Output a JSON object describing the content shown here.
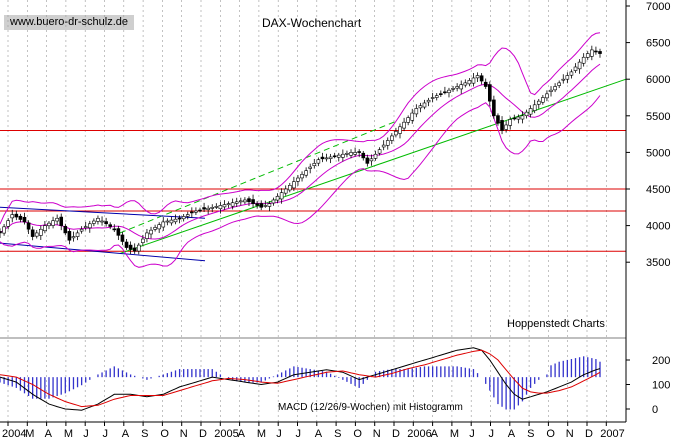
{
  "header": {
    "watermark": "www.buero-dr-schulz.de",
    "title": "DAX-Wochenchart"
  },
  "labels": {
    "source": "Hoppenstedt Charts",
    "macd": "MACD (12/26/9-Wochen) mit Histogramm"
  },
  "colors": {
    "price": "#000000",
    "bollinger": "#cc00cc",
    "support_lines": "#dd0000",
    "trend_up": "#00bb00",
    "channel": "#0000aa",
    "macd_line": "#000000",
    "signal_line": "#dd0000",
    "histogram": "#3333cc",
    "grid": "#999999"
  },
  "chart_data": {
    "type": "candlestick",
    "title": "DAX-Wochenchart",
    "y_price_ticks": [
      "7000",
      "6500",
      "6000",
      "5500",
      "5000",
      "4500",
      "4000",
      "3500"
    ],
    "y_price_values": [
      7000,
      6500,
      6000,
      5500,
      5000,
      4500,
      4000,
      3500
    ],
    "ylim_price": [
      3000,
      7050
    ],
    "y_macd_ticks": [
      "200",
      "100",
      "0"
    ],
    "y_macd_values": [
      200,
      100,
      0
    ],
    "ylim_macd": [
      -90,
      290
    ],
    "x_labels": [
      "2004",
      "M",
      "A",
      "M",
      "J",
      "J",
      "A",
      "S",
      "O",
      "N",
      "D",
      "2005",
      "A",
      "M",
      "J",
      "J",
      "A",
      "S",
      "O",
      "N",
      "D",
      "2006",
      "A",
      "M",
      "J",
      "J",
      "A",
      "S",
      "O",
      "N",
      "D",
      "2007"
    ],
    "horizontal_levels": [
      5300,
      4500,
      4200,
      3650
    ],
    "price_keypoints": [
      [
        0,
        3900
      ],
      [
        3,
        4150
      ],
      [
        6,
        4050
      ],
      [
        8,
        3850
      ],
      [
        11,
        4000
      ],
      [
        14,
        4100
      ],
      [
        17,
        3800
      ],
      [
        20,
        3950
      ],
      [
        24,
        4100
      ],
      [
        28,
        3950
      ],
      [
        31,
        3700
      ],
      [
        33,
        3650
      ],
      [
        36,
        3900
      ],
      [
        40,
        4050
      ],
      [
        44,
        4100
      ],
      [
        48,
        4200
      ],
      [
        52,
        4250
      ],
      [
        56,
        4300
      ],
      [
        60,
        4350
      ],
      [
        64,
        4250
      ],
      [
        66,
        4300
      ],
      [
        70,
        4500
      ],
      [
        74,
        4700
      ],
      [
        78,
        4900
      ],
      [
        82,
        4950
      ],
      [
        86,
        5000
      ],
      [
        88,
        5000
      ],
      [
        90,
        4850
      ],
      [
        94,
        5100
      ],
      [
        98,
        5350
      ],
      [
        102,
        5600
      ],
      [
        106,
        5750
      ],
      [
        110,
        5850
      ],
      [
        114,
        5950
      ],
      [
        117,
        6050
      ],
      [
        119,
        5900
      ],
      [
        121,
        5500
      ],
      [
        123,
        5300
      ],
      [
        125,
        5450
      ],
      [
        128,
        5500
      ],
      [
        131,
        5650
      ],
      [
        134,
        5800
      ],
      [
        137,
        5950
      ],
      [
        140,
        6100
      ],
      [
        143,
        6300
      ],
      [
        145,
        6400
      ],
      [
        147,
        6350
      ]
    ],
    "macd_keypoints": [
      [
        0,
        130
      ],
      [
        4,
        110
      ],
      [
        8,
        60
      ],
      [
        12,
        20
      ],
      [
        16,
        0
      ],
      [
        20,
        -5
      ],
      [
        24,
        20
      ],
      [
        28,
        60
      ],
      [
        32,
        60
      ],
      [
        36,
        50
      ],
      [
        40,
        60
      ],
      [
        44,
        90
      ],
      [
        48,
        110
      ],
      [
        52,
        130
      ],
      [
        56,
        120
      ],
      [
        60,
        110
      ],
      [
        64,
        100
      ],
      [
        68,
        110
      ],
      [
        72,
        140
      ],
      [
        76,
        150
      ],
      [
        80,
        160
      ],
      [
        84,
        150
      ],
      [
        88,
        120
      ],
      [
        92,
        140
      ],
      [
        96,
        160
      ],
      [
        100,
        180
      ],
      [
        104,
        200
      ],
      [
        108,
        220
      ],
      [
        112,
        240
      ],
      [
        116,
        250
      ],
      [
        118,
        240
      ],
      [
        120,
        200
      ],
      [
        122,
        150
      ],
      [
        124,
        100
      ],
      [
        126,
        60
      ],
      [
        128,
        40
      ],
      [
        130,
        50
      ],
      [
        132,
        60
      ],
      [
        134,
        70
      ],
      [
        137,
        90
      ],
      [
        140,
        110
      ],
      [
        143,
        140
      ],
      [
        146,
        160
      ],
      [
        147,
        165
      ]
    ],
    "signal_keypoints": [
      [
        0,
        140
      ],
      [
        4,
        130
      ],
      [
        8,
        100
      ],
      [
        12,
        60
      ],
      [
        16,
        30
      ],
      [
        20,
        10
      ],
      [
        24,
        15
      ],
      [
        28,
        40
      ],
      [
        32,
        55
      ],
      [
        36,
        55
      ],
      [
        40,
        55
      ],
      [
        44,
        75
      ],
      [
        48,
        95
      ],
      [
        52,
        115
      ],
      [
        56,
        125
      ],
      [
        60,
        120
      ],
      [
        64,
        110
      ],
      [
        68,
        105
      ],
      [
        72,
        120
      ],
      [
        76,
        135
      ],
      [
        80,
        150
      ],
      [
        84,
        155
      ],
      [
        88,
        140
      ],
      [
        92,
        130
      ],
      [
        96,
        145
      ],
      [
        100,
        165
      ],
      [
        104,
        180
      ],
      [
        108,
        200
      ],
      [
        112,
        220
      ],
      [
        116,
        235
      ],
      [
        118,
        240
      ],
      [
        120,
        225
      ],
      [
        122,
        200
      ],
      [
        124,
        160
      ],
      [
        126,
        120
      ],
      [
        128,
        85
      ],
      [
        130,
        70
      ],
      [
        132,
        65
      ],
      [
        134,
        65
      ],
      [
        137,
        75
      ],
      [
        140,
        90
      ],
      [
        143,
        115
      ],
      [
        146,
        140
      ],
      [
        147,
        150
      ]
    ]
  }
}
